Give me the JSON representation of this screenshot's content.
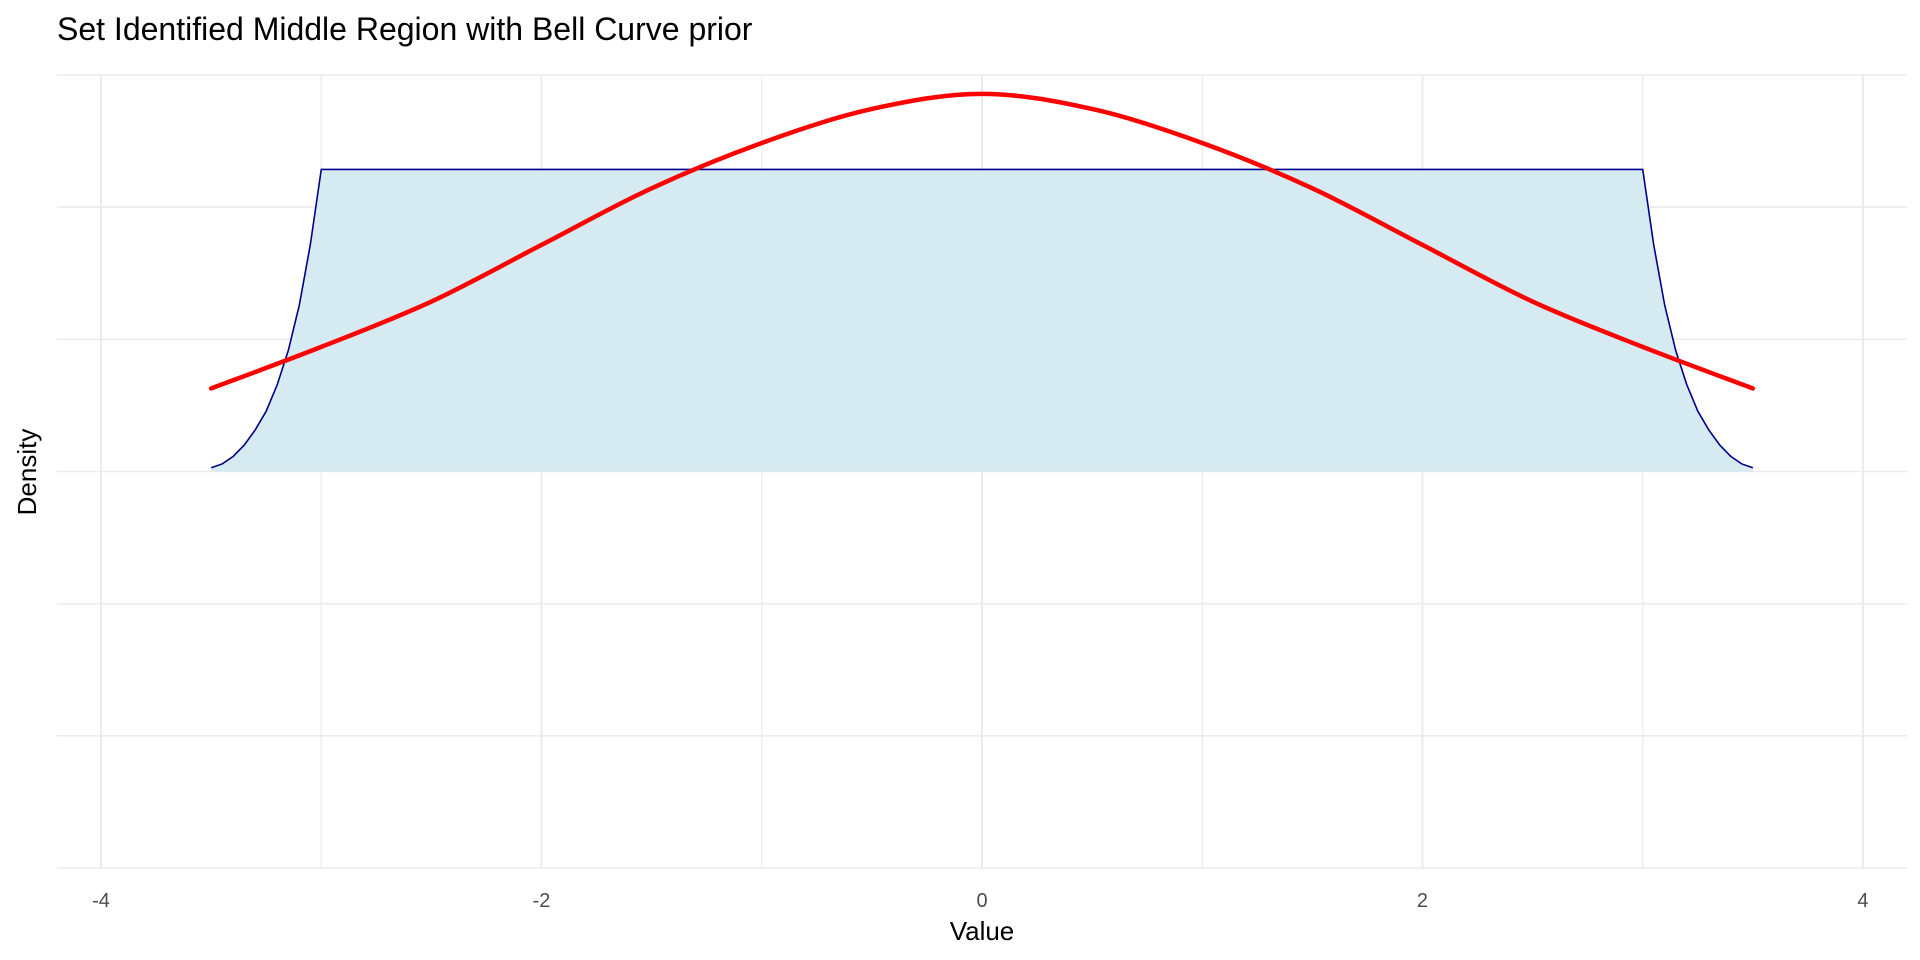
{
  "chart_data": {
    "type": "area",
    "title": "Set Identified Middle Region with Bell Curve prior",
    "xlabel": "Value",
    "ylabel": "Density",
    "xlim": [
      -4.2,
      4.2
    ],
    "ylim": [
      -0.105,
      0.105
    ],
    "x_ticks": [
      -4,
      -2,
      0,
      2,
      4
    ],
    "x_tick_labels": [
      "-4",
      "-2",
      "0",
      "2",
      "4"
    ],
    "y_ticks_shown": false,
    "grid": true,
    "legend": "none",
    "series": [
      {
        "type": "area",
        "fill": "#d6eaf1",
        "stroke": "#00008b",
        "x": [
          -3.5,
          -3.45,
          -3.4,
          -3.35,
          -3.3,
          -3.25,
          -3.2,
          -3.15,
          -3.1,
          -3.05,
          -3.0,
          3.0,
          3.05,
          3.1,
          3.15,
          3.2,
          3.25,
          3.3,
          3.35,
          3.4,
          3.45,
          3.5
        ],
        "y": [
          0.001,
          0.002,
          0.004,
          0.007,
          0.011,
          0.016,
          0.023,
          0.032,
          0.044,
          0.06,
          0.08,
          0.08,
          0.06,
          0.044,
          0.032,
          0.023,
          0.016,
          0.011,
          0.007,
          0.004,
          0.002,
          0.001
        ]
      },
      {
        "type": "line",
        "stroke": "#ff0000",
        "x": [
          -3.5,
          -3.0,
          -2.5,
          -2.0,
          -1.5,
          -1.0,
          -0.5,
          0.0,
          0.5,
          1.0,
          1.5,
          2.0,
          2.5,
          3.0,
          3.5
        ],
        "y": [
          0.022,
          0.033,
          0.045,
          0.06,
          0.075,
          0.087,
          0.096,
          0.1,
          0.096,
          0.087,
          0.075,
          0.06,
          0.045,
          0.033,
          0.022
        ]
      }
    ]
  }
}
